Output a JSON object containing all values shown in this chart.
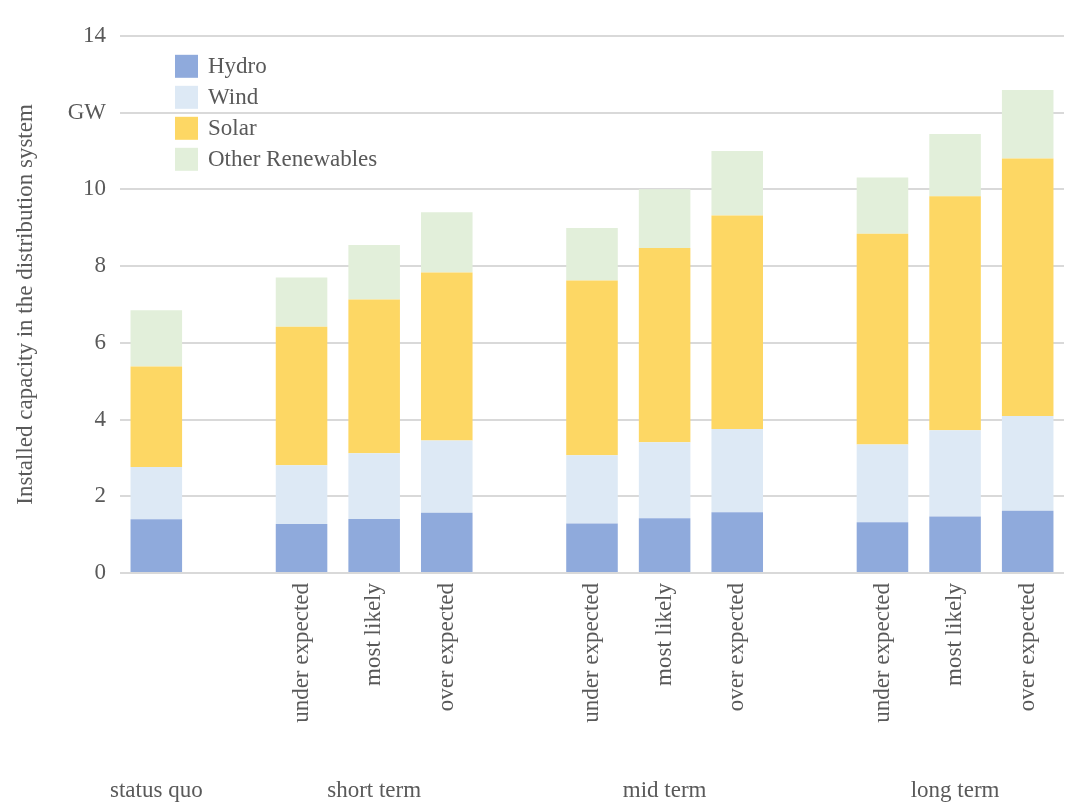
{
  "chart_data": {
    "type": "bar",
    "stacked": true,
    "ylabel": "Installed capacity in the distribution system",
    "categories": [
      null,
      null,
      "under expected",
      "most likely",
      "over expected",
      null,
      "under expected",
      "most likely",
      "over expected",
      null,
      "under expected",
      "most likely",
      "over expected"
    ],
    "series": [
      {
        "name": "Hydro",
        "color": "#8faadc",
        "values": [
          1.4,
          null,
          1.28,
          1.41,
          1.57,
          null,
          1.29,
          1.43,
          1.58,
          null,
          1.32,
          1.47,
          1.62
        ]
      },
      {
        "name": "Wind",
        "color": "#dde9f5",
        "values": [
          1.36,
          null,
          1.53,
          1.71,
          1.88,
          null,
          1.78,
          1.98,
          2.17,
          null,
          2.03,
          2.25,
          2.47
        ]
      },
      {
        "name": "Solar",
        "color": "#fdd764",
        "values": [
          2.62,
          null,
          3.61,
          4.01,
          4.38,
          null,
          4.55,
          5.06,
          5.57,
          null,
          5.49,
          6.1,
          6.71
        ]
      },
      {
        "name": "Other Renewables",
        "color": "#e2efda",
        "values": [
          1.47,
          null,
          1.28,
          1.42,
          1.57,
          null,
          1.37,
          1.53,
          1.68,
          null,
          1.47,
          1.62,
          1.79
        ]
      }
    ],
    "ylim": [
      0,
      14
    ],
    "yticks": [
      0,
      2,
      4,
      6,
      8,
      10,
      {
        "value": 12,
        "label": "GW"
      },
      14
    ],
    "grid": "y",
    "legend": "top left",
    "annotations": [
      "status quo",
      "short term",
      "mid term",
      "long term"
    ]
  }
}
